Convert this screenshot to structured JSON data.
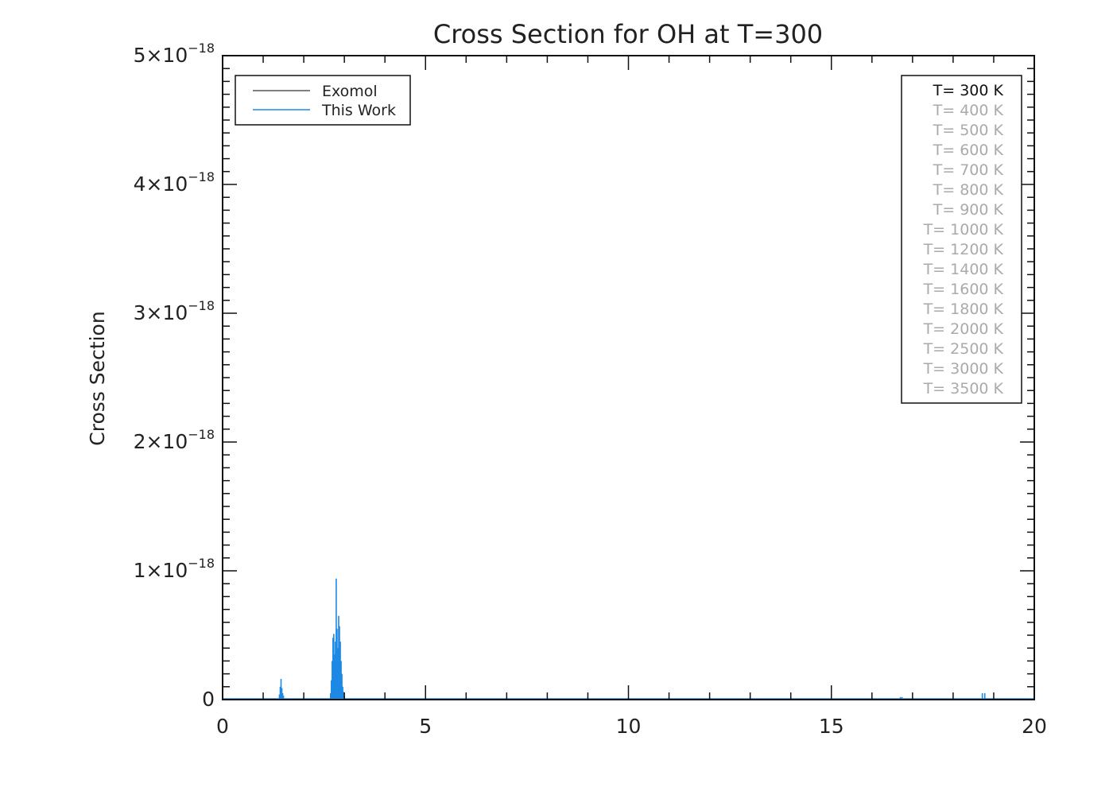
{
  "chart_data": {
    "type": "line",
    "title": "Cross Section for OH at T=300",
    "xlabel": "",
    "ylabel": "Cross Section",
    "xlim": [
      0,
      20
    ],
    "ylim": [
      0,
      5e-18
    ],
    "x_ticks": [
      0,
      5,
      10,
      15,
      20
    ],
    "x_tick_labels": [
      "0",
      "5",
      "10",
      "15",
      "20"
    ],
    "y_ticks": [
      0,
      1e-18,
      2e-18,
      3e-18,
      4e-18,
      5e-18
    ],
    "y_tick_labels": [
      {
        "mantissa": "0",
        "exponent": ""
      },
      {
        "mantissa": "1×10",
        "exponent": "−18"
      },
      {
        "mantissa": "2×10",
        "exponent": "−18"
      },
      {
        "mantissa": "3×10",
        "exponent": "−18"
      },
      {
        "mantissa": "4×10",
        "exponent": "−18"
      },
      {
        "mantissa": "5×10",
        "exponent": "−18"
      }
    ],
    "grid": false,
    "legend_position": "top-left",
    "series": [
      {
        "name": "Exomol",
        "color": "#555555",
        "x": [
          0,
          20
        ],
        "y": [
          0,
          0
        ]
      },
      {
        "name": "This Work",
        "color": "#1e88e5",
        "x": [
          1.4,
          1.42,
          1.44,
          1.46,
          1.48,
          1.5,
          2.66,
          2.68,
          2.7,
          2.72,
          2.74,
          2.76,
          2.78,
          2.8,
          2.82,
          2.84,
          2.86,
          2.88,
          2.9,
          2.92,
          2.94,
          2.96,
          2.98,
          3.0,
          3.02,
          16.7,
          16.74,
          18.72,
          18.78
        ],
        "y": [
          4e-20,
          1e-19,
          1.6e-19,
          9e-20,
          5e-20,
          3e-20,
          5e-20,
          1.5e-19,
          3e-19,
          4.8e-19,
          5.1e-19,
          3.5e-19,
          4.5e-19,
          9.4e-19,
          5.5e-19,
          4e-19,
          6.5e-19,
          5.7e-19,
          4.5e-19,
          3e-19,
          2e-19,
          1e-19,
          6e-20,
          3e-20,
          1e-20,
          2e-20,
          2e-20,
          5e-20,
          5e-20
        ]
      }
    ],
    "temperature_legend": {
      "active_color": "#111111",
      "inactive_color": "#aaaaaa",
      "entries": [
        {
          "label": "T=  300 K",
          "active": true
        },
        {
          "label": "T=  400 K",
          "active": false
        },
        {
          "label": "T=  500 K",
          "active": false
        },
        {
          "label": "T=  600 K",
          "active": false
        },
        {
          "label": "T=  700 K",
          "active": false
        },
        {
          "label": "T=  800 K",
          "active": false
        },
        {
          "label": "T=  900 K",
          "active": false
        },
        {
          "label": "T=  1000 K",
          "active": false
        },
        {
          "label": "T=  1200 K",
          "active": false
        },
        {
          "label": "T=  1400 K",
          "active": false
        },
        {
          "label": "T=  1600 K",
          "active": false
        },
        {
          "label": "T=  1800 K",
          "active": false
        },
        {
          "label": "T=  2000 K",
          "active": false
        },
        {
          "label": "T=  2500 K",
          "active": false
        },
        {
          "label": "T=  3000 K",
          "active": false
        },
        {
          "label": "T=  3500 K",
          "active": false
        }
      ]
    }
  }
}
